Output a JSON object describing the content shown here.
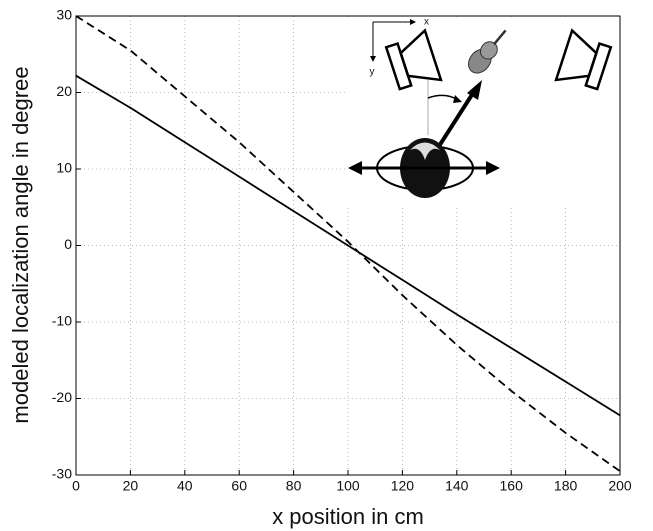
{
  "chart_data": {
    "type": "line",
    "x_label": "x position in cm",
    "y_label": "modeled localization angle in degree",
    "inset_axis_labels": {
      "x": "x",
      "y": "y"
    },
    "x": [
      0,
      20,
      40,
      60,
      80,
      100,
      120,
      140,
      160,
      180,
      200
    ],
    "series": [
      {
        "color": "#000000",
        "dashed": false,
        "values": [
          22.2,
          18,
          13.5,
          9,
          4.5,
          0,
          -4.5,
          -9,
          -13.4,
          -17.8,
          -22.2
        ]
      },
      {
        "color": "#000000",
        "dashed": true,
        "values": [
          30,
          25.5,
          19.5,
          13.5,
          7,
          0.5,
          -6.5,
          -13,
          -19,
          -24.5,
          -29.5
        ]
      }
    ],
    "xlim": [
      0,
      200
    ],
    "ylim": [
      -30,
      30
    ],
    "xticks": [
      0,
      20,
      40,
      60,
      80,
      100,
      120,
      140,
      160,
      180,
      200
    ],
    "yticks": [
      -30,
      -20,
      -10,
      0,
      10,
      20,
      30
    ],
    "grid": true
  }
}
